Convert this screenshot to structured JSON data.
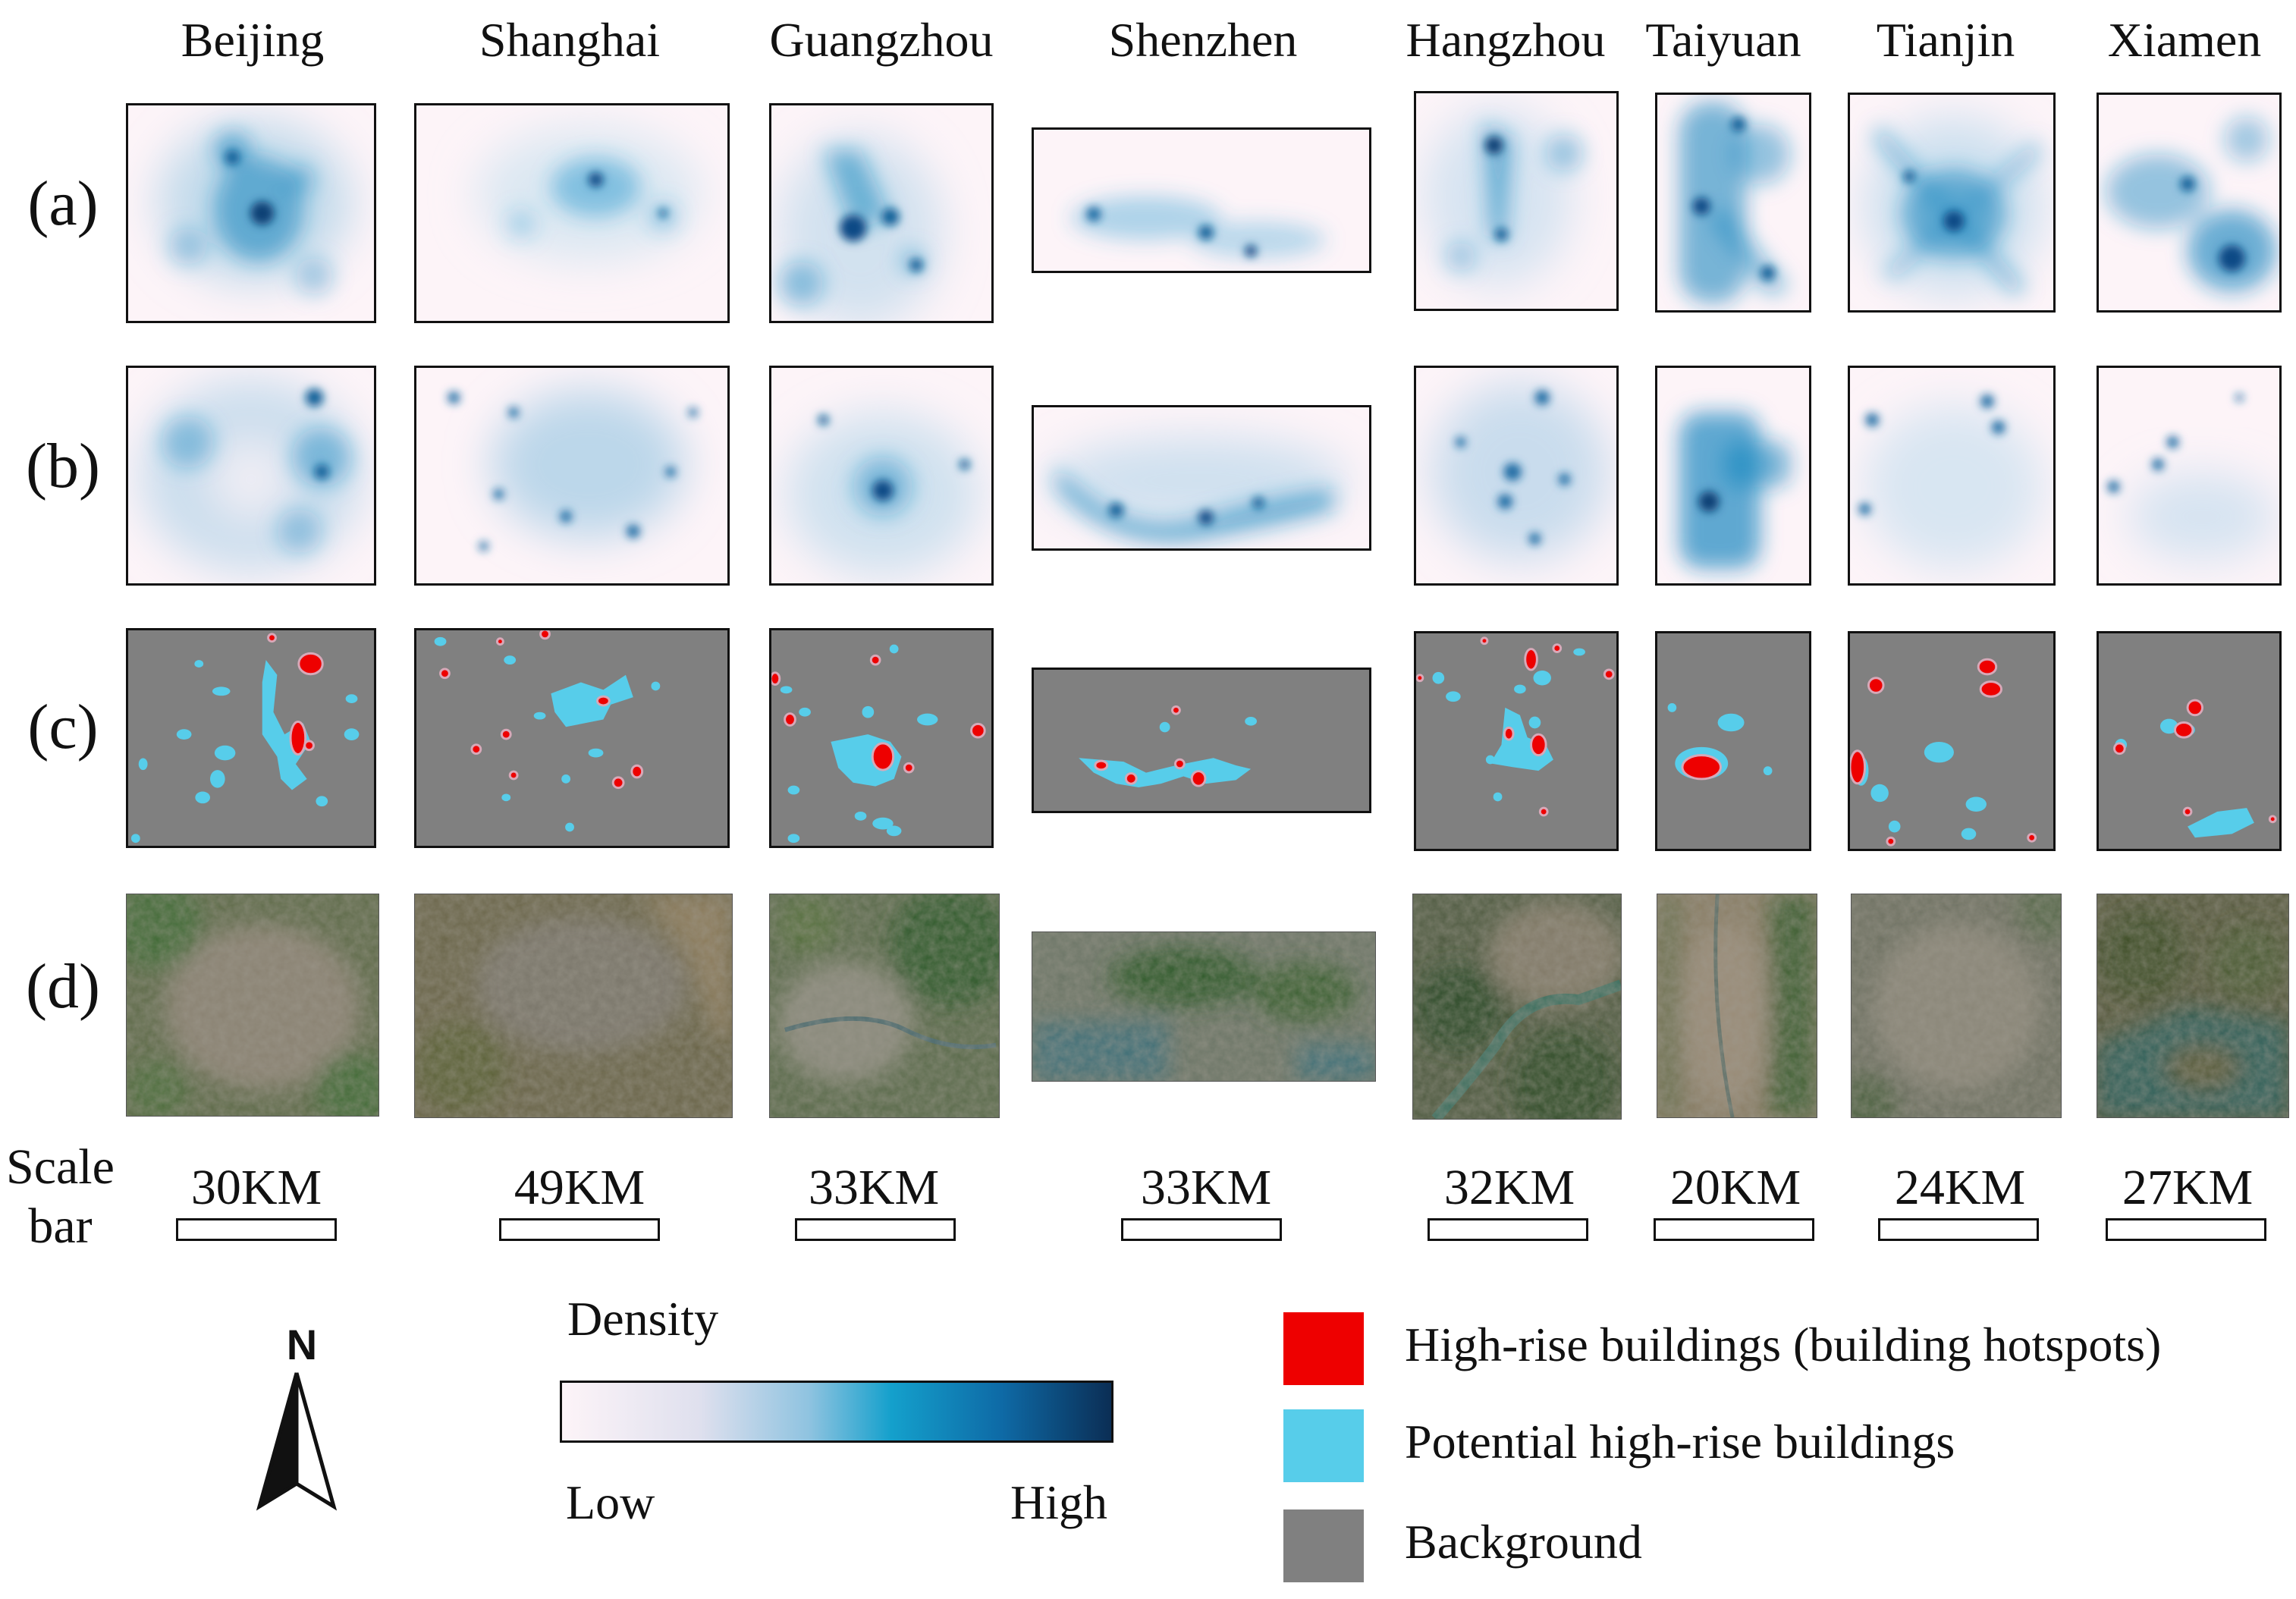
{
  "cities": [
    "Beijing",
    "Shanghai",
    "Guangzhou",
    "Shenzhen",
    "Hangzhou",
    "Taiyuan",
    "Tianjin",
    "Xiamen"
  ],
  "rows": [
    "(a)",
    "(b)",
    "(c)",
    "(d)"
  ],
  "scale": {
    "label_line1": "Scale",
    "label_line2": "bar",
    "values": [
      "30KM",
      "49KM",
      "33KM",
      "33KM",
      "32KM",
      "20KM",
      "24KM",
      "27KM"
    ]
  },
  "north_arrow": {
    "label": "N"
  },
  "density_legend": {
    "title": "Density",
    "low": "Low",
    "high": "High"
  },
  "category_legend": [
    {
      "label": "High-rise buildings (building hotspots)",
      "color": "#ee0000"
    },
    {
      "label": "Potential high-rise buildings",
      "color": "#57cdea"
    },
    {
      "label": "Background",
      "color": "#808080"
    }
  ],
  "colors": {
    "density_low": "#fdf4f8",
    "density_mid": "#14a0cc",
    "density_high": "#0b2e55",
    "hotspot": "#ee0000",
    "potential": "#57cdea",
    "background": "#808080"
  }
}
